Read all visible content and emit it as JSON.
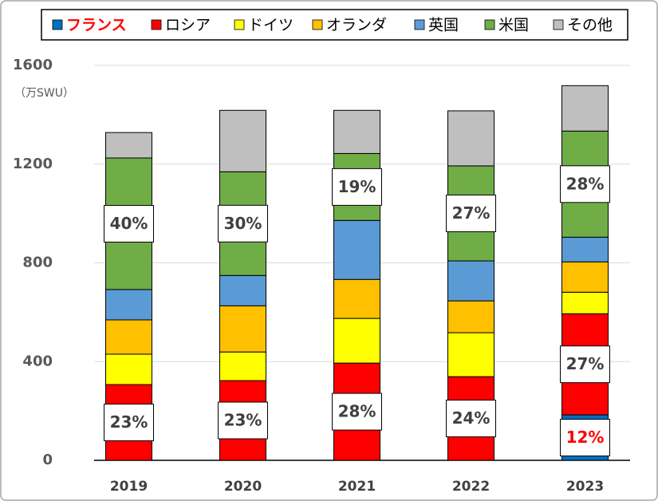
{
  "chart_data": {
    "type": "stacked_bar",
    "y_label": "（万SWU）",
    "categories": [
      "2019",
      "2020",
      "2021",
      "2022",
      "2023"
    ],
    "series": [
      {
        "name": "フランス",
        "color": "#0070c0",
        "text_color": "#ff0000",
        "values": [
          0,
          0,
          0,
          0,
          184
        ]
      },
      {
        "name": "ロシア",
        "color": "#ff0000",
        "values": [
          307,
          323,
          394,
          339,
          410
        ]
      },
      {
        "name": "ドイツ",
        "color": "#ffff00",
        "values": [
          123,
          116,
          181,
          178,
          87
        ]
      },
      {
        "name": "オランダ",
        "color": "#ffc000",
        "values": [
          139,
          187,
          158,
          129,
          123
        ]
      },
      {
        "name": "英国",
        "color": "#5b9bd5",
        "values": [
          123,
          123,
          239,
          162,
          100
        ]
      },
      {
        "name": "米国",
        "color": "#70ad47",
        "values": [
          533,
          420,
          271,
          385,
          430
        ]
      },
      {
        "name": "その他",
        "color": "#bfbfbf",
        "values": [
          103,
          249,
          175,
          223,
          184
        ]
      }
    ],
    "annotations": [
      {
        "category": 0,
        "series": 1,
        "label": "23%"
      },
      {
        "category": 0,
        "series": 5,
        "label": "40%"
      },
      {
        "category": 1,
        "series": 1,
        "label": "23%"
      },
      {
        "category": 1,
        "series": 5,
        "label": "30%"
      },
      {
        "category": 2,
        "series": 1,
        "label": "28%"
      },
      {
        "category": 2,
        "series": 5,
        "label": "19%"
      },
      {
        "category": 3,
        "series": 1,
        "label": "24%"
      },
      {
        "category": 3,
        "series": 5,
        "label": "27%"
      },
      {
        "category": 4,
        "series": 0,
        "label": "12%"
      },
      {
        "category": 4,
        "series": 1,
        "label": "27%"
      },
      {
        "category": 4,
        "series": 5,
        "label": "28%"
      }
    ],
    "ylim": [
      0,
      1600
    ],
    "yticks": [
      0,
      400,
      800,
      1200,
      1600
    ],
    "grid": true,
    "legend": "top"
  }
}
